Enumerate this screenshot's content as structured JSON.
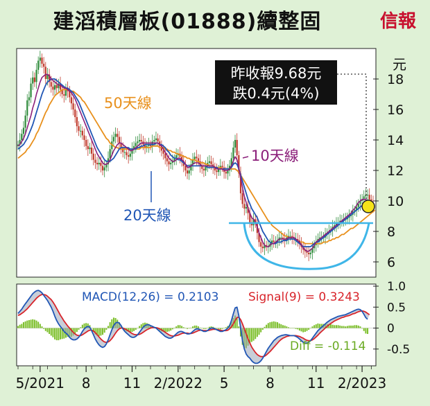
{
  "header": {
    "title": "建滔積層板(01888)續整固",
    "brand": "信報"
  },
  "colors": {
    "background": "#dff1d6",
    "panel": "#ffffff",
    "ma10": "#8b1f7a",
    "ma20": "#2056b5",
    "ma50": "#e8901c",
    "macd": "#2056b5",
    "signal": "#d8242a",
    "diff": "#7cbf2a",
    "candle_up": "#2e8b3a",
    "candle_down": "#c0392b",
    "support": "#3fb6e8",
    "highlight": "#f5e31a"
  },
  "chart_data": [
    {
      "type": "line",
      "unit_label": "元",
      "ylim": [
        5.0,
        20.0
      ],
      "yticks": [
        6,
        8,
        10,
        12,
        14,
        16,
        18
      ],
      "x_ticks": [
        "5/2021",
        "8",
        "11",
        "2/2022",
        "5",
        "8",
        "11",
        "2/2023"
      ],
      "x_tick_index": [
        12,
        37,
        62,
        87,
        112,
        137,
        162,
        187
      ],
      "callout": [
        "昨收報9.68元",
        "跌0.4元(4%)"
      ],
      "labels": {
        "ma50": "50天線",
        "ma10": "10天線",
        "ma20": "20天線"
      },
      "price": [
        13.7,
        14.0,
        14.4,
        14.8,
        15.6,
        16.6,
        16.8,
        17.7,
        18.1,
        17.8,
        18.6,
        19.2,
        19.4,
        19.0,
        18.8,
        18.0,
        18.3,
        17.8,
        17.5,
        17.3,
        17.6,
        17.4,
        17.7,
        17.3,
        17.0,
        16.9,
        17.4,
        17.2,
        16.8,
        16.4,
        16.0,
        15.5,
        14.9,
        14.6,
        14.6,
        14.3,
        14.0,
        13.6,
        13.4,
        13.5,
        13.1,
        12.7,
        12.5,
        12.4,
        12.5,
        12.3,
        12.0,
        12.2,
        12.4,
        12.8,
        13.4,
        13.9,
        14.2,
        14.4,
        14.2,
        13.8,
        13.5,
        13.2,
        13.2,
        13.0,
        12.9,
        13.1,
        13.4,
        13.6,
        13.8,
        13.9,
        14.0,
        13.9,
        13.7,
        13.5,
        13.6,
        13.7,
        13.6,
        13.9,
        14.0,
        14.1,
        13.9,
        13.6,
        13.3,
        13.1,
        12.8,
        12.6,
        12.4,
        12.5,
        12.6,
        12.8,
        13.0,
        13.1,
        12.9,
        12.6,
        12.3,
        12.0,
        11.8,
        12.0,
        12.4,
        12.7,
        12.9,
        12.8,
        12.6,
        12.3,
        12.1,
        12.0,
        12.3,
        12.5,
        12.6,
        12.4,
        12.2,
        12.0,
        11.9,
        12.1,
        12.3,
        12.2,
        11.9,
        11.8,
        12.0,
        12.3,
        12.8,
        13.5,
        14.0,
        13.0,
        11.8,
        10.5,
        9.8,
        9.5,
        9.6,
        9.2,
        8.6,
        8.4,
        8.8,
        8.6,
        7.9,
        7.3,
        7.0,
        6.9,
        7.1,
        7.0,
        7.0,
        7.2,
        7.4,
        7.3,
        7.3,
        7.4,
        7.6,
        7.6,
        7.5,
        7.4,
        7.6,
        7.7,
        7.7,
        7.6,
        7.5,
        7.5,
        7.4,
        7.2,
        7.0,
        6.8,
        6.7,
        6.6,
        6.5,
        6.6,
        6.9,
        7.1,
        7.3,
        7.5,
        7.6,
        7.6,
        7.6,
        7.8,
        7.9,
        8.0,
        8.1,
        8.3,
        8.4,
        8.5,
        8.6,
        8.7,
        8.7,
        8.8,
        8.8,
        8.9,
        9.0,
        9.1,
        9.3,
        9.4,
        9.6,
        9.8,
        10.0,
        10.1,
        10.3,
        10.4,
        10.4,
        10.1,
        9.9,
        9.68
      ],
      "ma10": [
        13.6,
        13.7,
        13.9,
        14.1,
        14.4,
        14.8,
        15.2,
        15.6,
        16.1,
        16.5,
        17.0,
        17.4,
        17.8,
        18.1,
        18.2,
        18.3,
        18.3,
        18.2,
        18.0,
        17.9,
        17.8,
        17.7,
        17.6,
        17.6,
        17.5,
        17.4,
        17.4,
        17.3,
        17.2,
        17.1,
        16.9,
        16.7,
        16.4,
        16.1,
        15.8,
        15.5,
        15.2,
        14.9,
        14.6,
        14.3,
        14.0,
        13.7,
        13.4,
        13.1,
        12.9,
        12.7,
        12.5,
        12.4,
        12.4,
        12.5,
        12.7,
        13.0,
        13.3,
        13.5,
        13.7,
        13.8,
        13.8,
        13.7,
        13.6,
        13.5,
        13.4,
        13.3,
        13.3,
        13.4,
        13.5,
        13.6,
        13.7,
        13.8,
        13.8,
        13.8,
        13.8,
        13.8,
        13.8,
        13.8,
        13.8,
        13.8,
        13.8,
        13.7,
        13.6,
        13.4,
        13.2,
        13.0,
        12.8,
        12.7,
        12.6,
        12.6,
        12.7,
        12.8,
        12.8,
        12.7,
        12.6,
        12.4,
        12.2,
        12.2,
        12.3,
        12.4,
        12.5,
        12.5,
        12.5,
        12.4,
        12.3,
        12.3,
        12.3,
        12.3,
        12.3,
        12.3,
        12.3,
        12.2,
        12.1,
        12.1,
        12.1,
        12.1,
        12.0,
        12.0,
        12.0,
        12.1,
        12.3,
        12.6,
        12.9,
        12.7,
        12.2,
        11.5,
        10.9,
        10.3,
        9.9,
        9.5,
        9.2,
        8.9,
        8.8,
        8.6,
        8.3,
        7.9,
        7.6,
        7.3,
        7.1,
        7.0,
        7.0,
        7.1,
        7.2,
        7.2,
        7.3,
        7.4,
        7.5,
        7.5,
        7.5,
        7.5,
        7.5,
        7.6,
        7.6,
        7.6,
        7.6,
        7.5,
        7.4,
        7.3,
        7.1,
        6.9,
        6.8,
        6.7,
        6.7,
        6.8,
        6.9,
        7.1,
        7.3,
        7.4,
        7.5,
        7.6,
        7.7,
        7.8,
        7.9,
        8.0,
        8.1,
        8.2,
        8.3,
        8.4,
        8.5,
        8.6,
        8.7,
        8.8,
        8.9,
        9.0,
        9.1,
        9.2,
        9.4,
        9.5,
        9.7,
        9.9,
        10.0,
        10.1,
        10.1,
        10.1,
        10.0
      ],
      "ma20": [
        13.4,
        13.5,
        13.6,
        13.7,
        13.9,
        14.1,
        14.4,
        14.7,
        15.0,
        15.4,
        15.8,
        16.2,
        16.6,
        17.0,
        17.3,
        17.6,
        17.8,
        17.9,
        18.0,
        18.0,
        18.0,
        17.9,
        17.8,
        17.7,
        17.6,
        17.5,
        17.4,
        17.4,
        17.3,
        17.2,
        17.1,
        16.9,
        16.7,
        16.5,
        16.2,
        15.9,
        15.6,
        15.3,
        15.0,
        14.7,
        14.4,
        14.1,
        13.8,
        13.5,
        13.3,
        13.1,
        12.9,
        12.7,
        12.6,
        12.6,
        12.6,
        12.7,
        12.8,
        13.0,
        13.2,
        13.4,
        13.5,
        13.5,
        13.5,
        13.5,
        13.5,
        13.4,
        13.4,
        13.4,
        13.4,
        13.5,
        13.5,
        13.6,
        13.6,
        13.7,
        13.7,
        13.7,
        13.7,
        13.7,
        13.7,
        13.8,
        13.8,
        13.7,
        13.7,
        13.6,
        13.5,
        13.3,
        13.2,
        13.0,
        12.9,
        12.8,
        12.8,
        12.7,
        12.7,
        12.6,
        12.5,
        12.4,
        12.3,
        12.3,
        12.3,
        12.3,
        12.3,
        12.3,
        12.3,
        12.3,
        12.3,
        12.3,
        12.3,
        12.2,
        12.2,
        12.2,
        12.2,
        12.2,
        12.2,
        12.1,
        12.1,
        12.1,
        12.1,
        12.1,
        12.1,
        12.1,
        12.2,
        12.4,
        12.5,
        12.4,
        12.1,
        11.7,
        11.3,
        10.9,
        10.5,
        10.1,
        9.8,
        9.5,
        9.3,
        9.1,
        8.9,
        8.6,
        8.3,
        8.0,
        7.8,
        7.6,
        7.4,
        7.3,
        7.2,
        7.2,
        7.2,
        7.3,
        7.3,
        7.3,
        7.4,
        7.4,
        7.4,
        7.5,
        7.5,
        7.5,
        7.5,
        7.4,
        7.3,
        7.2,
        7.1,
        7.0,
        7.0,
        7.0,
        7.0,
        7.0,
        7.1,
        7.2,
        7.3,
        7.3,
        7.4,
        7.5,
        7.6,
        7.7,
        7.8,
        7.9,
        8.0,
        8.1,
        8.2,
        8.3,
        8.4,
        8.5,
        8.6,
        8.7,
        8.8,
        8.9,
        9.0,
        9.1,
        9.2,
        9.3,
        9.4,
        9.5,
        9.6,
        9.7,
        9.8,
        9.9
      ],
      "ma50": [
        12.8,
        12.9,
        13.0,
        13.1,
        13.2,
        13.4,
        13.5,
        13.7,
        13.9,
        14.1,
        14.4,
        14.6,
        14.9,
        15.2,
        15.5,
        15.8,
        16.0,
        16.3,
        16.5,
        16.7,
        16.9,
        17.0,
        17.1,
        17.2,
        17.3,
        17.3,
        17.3,
        17.3,
        17.3,
        17.2,
        17.2,
        17.1,
        17.0,
        16.9,
        16.8,
        16.6,
        16.5,
        16.3,
        16.1,
        15.9,
        15.7,
        15.5,
        15.3,
        15.1,
        14.9,
        14.7,
        14.5,
        14.3,
        14.1,
        14.0,
        13.8,
        13.7,
        13.6,
        13.5,
        13.5,
        13.4,
        13.4,
        13.4,
        13.4,
        13.4,
        13.4,
        13.4,
        13.4,
        13.4,
        13.4,
        13.4,
        13.4,
        13.5,
        13.5,
        13.5,
        13.5,
        13.5,
        13.5,
        13.6,
        13.6,
        13.6,
        13.6,
        13.5,
        13.5,
        13.5,
        13.4,
        13.4,
        13.3,
        13.3,
        13.2,
        13.2,
        13.1,
        13.1,
        13.0,
        13.0,
        12.9,
        12.9,
        12.8,
        12.8,
        12.7,
        12.7,
        12.7,
        12.6,
        12.6,
        12.5,
        12.5,
        12.5,
        12.4,
        12.4,
        12.3,
        12.3,
        12.3,
        12.2,
        12.2,
        12.2,
        12.2,
        12.1,
        12.1,
        12.1,
        12.1,
        12.1,
        12.1,
        12.1,
        12.1,
        12.0,
        11.9,
        11.7,
        11.5,
        11.3,
        11.1,
        10.9,
        10.7,
        10.5,
        10.3,
        10.1,
        9.9,
        9.7,
        9.5,
        9.3,
        9.1,
        8.9,
        8.7,
        8.6,
        8.4,
        8.3,
        8.2,
        8.1,
        8.0,
        7.9,
        7.8,
        7.7,
        7.7,
        7.6,
        7.6,
        7.5,
        7.5,
        7.4,
        7.4,
        7.3,
        7.3,
        7.3,
        7.2,
        7.2,
        7.2,
        7.2,
        7.2,
        7.2,
        7.2,
        7.2,
        7.2,
        7.2,
        7.3,
        7.3,
        7.3,
        7.4,
        7.4,
        7.5,
        7.5,
        7.6,
        7.6,
        7.7,
        7.8,
        7.8,
        7.9,
        8.0,
        8.1,
        8.2,
        8.2,
        8.3,
        8.4,
        8.5,
        8.6,
        8.7,
        8.8,
        8.9,
        9.0,
        9.1,
        9.2,
        9.3,
        9.4
      ]
    },
    {
      "type": "line",
      "ylim": [
        -0.9,
        1.05
      ],
      "yticks": [
        1.0,
        0.5,
        0,
        -0.5
      ],
      "ytick_labels": [
        "1.0",
        "0.5",
        "0",
        "-0.5"
      ],
      "labels": {
        "macd": "MACD(12,26) = 0.2103",
        "signal": "Signal(9) = 0.3243",
        "diff": "Diff = -0.114"
      },
      "macd": [
        0.35,
        0.4,
        0.45,
        0.52,
        0.58,
        0.64,
        0.7,
        0.76,
        0.82,
        0.86,
        0.89,
        0.9,
        0.88,
        0.84,
        0.78,
        0.72,
        0.66,
        0.58,
        0.5,
        0.4,
        0.28,
        0.18,
        0.1,
        0.04,
        -0.02,
        -0.08,
        -0.12,
        -0.16,
        -0.22,
        -0.26,
        -0.28,
        -0.28,
        -0.26,
        -0.22,
        -0.16,
        -0.08,
        -0.02,
        0.02,
        0.04,
        0.02,
        -0.06,
        -0.16,
        -0.26,
        -0.34,
        -0.4,
        -0.44,
        -0.46,
        -0.44,
        -0.38,
        -0.28,
        -0.16,
        -0.04,
        0.06,
        0.12,
        0.14,
        0.12,
        0.06,
        -0.02,
        -0.08,
        -0.12,
        -0.16,
        -0.2,
        -0.22,
        -0.22,
        -0.2,
        -0.16,
        -0.1,
        -0.04,
        0.02,
        0.06,
        0.08,
        0.08,
        0.06,
        0.04,
        0.02,
        0.0,
        -0.04,
        -0.08,
        -0.12,
        -0.16,
        -0.2,
        -0.22,
        -0.24,
        -0.24,
        -0.22,
        -0.18,
        -0.14,
        -0.1,
        -0.08,
        -0.08,
        -0.1,
        -0.12,
        -0.14,
        -0.14,
        -0.12,
        -0.08,
        -0.04,
        -0.02,
        -0.02,
        -0.04,
        -0.06,
        -0.08,
        -0.08,
        -0.06,
        -0.02,
        0.0,
        0.0,
        -0.02,
        -0.04,
        -0.06,
        -0.08,
        -0.08,
        -0.06,
        -0.04,
        0.0,
        0.06,
        0.18,
        0.34,
        0.48,
        0.5,
        0.3,
        0.0,
        -0.3,
        -0.5,
        -0.62,
        -0.68,
        -0.72,
        -0.78,
        -0.82,
        -0.84,
        -0.84,
        -0.82,
        -0.78,
        -0.72,
        -0.64,
        -0.56,
        -0.48,
        -0.42,
        -0.36,
        -0.3,
        -0.26,
        -0.22,
        -0.2,
        -0.18,
        -0.17,
        -0.16,
        -0.16,
        -0.17,
        -0.18,
        -0.18,
        -0.18,
        -0.2,
        -0.22,
        -0.26,
        -0.3,
        -0.34,
        -0.36,
        -0.36,
        -0.34,
        -0.3,
        -0.24,
        -0.18,
        -0.12,
        -0.06,
        -0.02,
        0.02,
        0.06,
        0.1,
        0.14,
        0.17,
        0.2,
        0.22,
        0.24,
        0.26,
        0.28,
        0.29,
        0.3,
        0.31,
        0.32,
        0.34,
        0.36,
        0.38,
        0.4,
        0.42,
        0.44,
        0.45,
        0.44,
        0.4,
        0.33,
        0.25,
        0.21
      ],
      "signal": [
        0.3,
        0.32,
        0.35,
        0.38,
        0.42,
        0.46,
        0.51,
        0.56,
        0.61,
        0.66,
        0.71,
        0.75,
        0.78,
        0.8,
        0.8,
        0.79,
        0.76,
        0.72,
        0.68,
        0.62,
        0.55,
        0.47,
        0.39,
        0.31,
        0.24,
        0.17,
        0.11,
        0.05,
        0.0,
        -0.05,
        -0.1,
        -0.14,
        -0.17,
        -0.18,
        -0.18,
        -0.16,
        -0.13,
        -0.1,
        -0.07,
        -0.05,
        -0.05,
        -0.07,
        -0.11,
        -0.16,
        -0.21,
        -0.26,
        -0.3,
        -0.33,
        -0.34,
        -0.33,
        -0.3,
        -0.25,
        -0.19,
        -0.12,
        -0.06,
        -0.02,
        0.0,
        0.0,
        -0.02,
        -0.04,
        -0.07,
        -0.1,
        -0.13,
        -0.15,
        -0.16,
        -0.16,
        -0.15,
        -0.13,
        -0.1,
        -0.07,
        -0.04,
        -0.02,
        0.0,
        0.01,
        0.01,
        0.01,
        0.0,
        -0.02,
        -0.04,
        -0.07,
        -0.1,
        -0.13,
        -0.16,
        -0.18,
        -0.19,
        -0.19,
        -0.18,
        -0.17,
        -0.15,
        -0.13,
        -0.12,
        -0.12,
        -0.12,
        -0.13,
        -0.13,
        -0.12,
        -0.1,
        -0.08,
        -0.06,
        -0.05,
        -0.05,
        -0.06,
        -0.06,
        -0.06,
        -0.05,
        -0.04,
        -0.03,
        -0.03,
        -0.03,
        -0.04,
        -0.05,
        -0.06,
        -0.06,
        -0.06,
        -0.05,
        -0.02,
        0.03,
        0.1,
        0.18,
        0.25,
        0.26,
        0.2,
        0.1,
        -0.02,
        -0.14,
        -0.26,
        -0.36,
        -0.45,
        -0.52,
        -0.58,
        -0.63,
        -0.66,
        -0.68,
        -0.68,
        -0.67,
        -0.64,
        -0.6,
        -0.56,
        -0.51,
        -0.46,
        -0.41,
        -0.36,
        -0.31,
        -0.27,
        -0.24,
        -0.22,
        -0.2,
        -0.19,
        -0.18,
        -0.18,
        -0.18,
        -0.18,
        -0.19,
        -0.2,
        -0.22,
        -0.24,
        -0.27,
        -0.29,
        -0.3,
        -0.3,
        -0.28,
        -0.25,
        -0.21,
        -0.17,
        -0.12,
        -0.08,
        -0.04,
        0.0,
        0.04,
        0.08,
        0.11,
        0.14,
        0.17,
        0.19,
        0.21,
        0.23,
        0.25,
        0.26,
        0.28,
        0.29,
        0.3,
        0.32,
        0.34,
        0.35,
        0.37,
        0.39,
        0.4,
        0.41,
        0.4,
        0.38,
        0.35,
        0.32
      ]
    }
  ]
}
